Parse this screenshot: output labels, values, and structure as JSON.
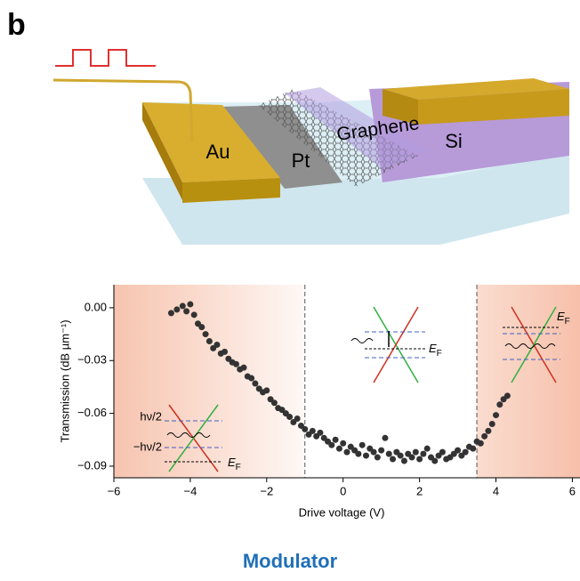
{
  "panel_label": "b",
  "schematic": {
    "labels": [
      "Au",
      "Pt",
      "Graphene",
      "Si"
    ]
  },
  "caption": "Modulator",
  "insets": [
    {
      "labels": [
        "hν/2",
        "−hν/2"
      ],
      "ef": "E",
      "ef_sub": "F"
    },
    {
      "ef": "E",
      "ef_sub": "F"
    },
    {
      "ef": "E",
      "ef_sub": "F"
    }
  ],
  "chart_data": {
    "type": "scatter",
    "xlabel": "Drive voltage (V)",
    "ylabel": "Transmission (dB µm⁻¹)",
    "color": "#333333",
    "x": [
      -4.5,
      -4.35,
      -4.2,
      -4.1,
      -4.0,
      -3.9,
      -3.8,
      -3.7,
      -3.6,
      -3.5,
      -3.4,
      -3.3,
      -3.2,
      -3.1,
      -3.0,
      -2.9,
      -2.8,
      -2.7,
      -2.6,
      -2.5,
      -2.4,
      -2.3,
      -2.2,
      -2.1,
      -2.0,
      -1.9,
      -1.8,
      -1.7,
      -1.6,
      -1.5,
      -1.4,
      -1.3,
      -1.2,
      -1.1,
      -1.0,
      -0.9,
      -0.8,
      -0.7,
      -0.6,
      -0.5,
      -0.4,
      -0.3,
      -0.2,
      -0.1,
      0.0,
      0.1,
      0.2,
      0.3,
      0.4,
      0.5,
      0.6,
      0.7,
      0.8,
      0.9,
      1.0,
      1.1,
      1.2,
      1.3,
      1.4,
      1.5,
      1.6,
      1.7,
      1.8,
      1.9,
      2.0,
      2.1,
      2.2,
      2.3,
      2.4,
      2.5,
      2.6,
      2.7,
      2.8,
      2.9,
      3.0,
      3.1,
      3.2,
      3.3,
      3.4,
      3.5,
      3.6,
      3.7,
      3.8,
      3.9,
      4.0,
      4.1,
      4.2,
      4.3
    ],
    "values": [
      -0.003,
      -0.001,
      0.001,
      -0.002,
      0.002,
      -0.004,
      -0.009,
      -0.011,
      -0.015,
      -0.019,
      -0.023,
      -0.021,
      -0.026,
      -0.025,
      -0.029,
      -0.031,
      -0.032,
      -0.035,
      -0.034,
      -0.039,
      -0.04,
      -0.043,
      -0.046,
      -0.048,
      -0.047,
      -0.052,
      -0.054,
      -0.057,
      -0.058,
      -0.06,
      -0.062,
      -0.065,
      -0.063,
      -0.067,
      -0.069,
      -0.072,
      -0.07,
      -0.073,
      -0.071,
      -0.074,
      -0.076,
      -0.078,
      -0.075,
      -0.08,
      -0.077,
      -0.082,
      -0.079,
      -0.081,
      -0.083,
      -0.078,
      -0.084,
      -0.08,
      -0.082,
      -0.085,
      -0.081,
      -0.074,
      -0.083,
      -0.086,
      -0.082,
      -0.084,
      -0.087,
      -0.083,
      -0.085,
      -0.082,
      -0.086,
      -0.083,
      -0.08,
      -0.085,
      -0.087,
      -0.084,
      -0.082,
      -0.086,
      -0.085,
      -0.083,
      -0.081,
      -0.084,
      -0.082,
      -0.079,
      -0.08,
      -0.076,
      -0.077,
      -0.073,
      -0.07,
      -0.066,
      -0.061,
      -0.055,
      -0.052,
      -0.05
    ],
    "xlim": [
      -6,
      6.2
    ],
    "ylim": [
      -0.0966,
      0.0131
    ],
    "xticks": [
      {
        "value": -6,
        "label": "−6"
      },
      {
        "value": -4,
        "label": "−4"
      },
      {
        "value": -2,
        "label": "−2"
      },
      0,
      2,
      4,
      6
    ],
    "yticks": [
      {
        "value": 0,
        "label": "0.00"
      },
      {
        "value": -0.03,
        "label": "−0.03"
      },
      {
        "value": -0.06,
        "label": "−0.06"
      },
      {
        "value": -0.09,
        "label": "−0.09"
      }
    ],
    "vlines": [
      -1,
      3.5
    ],
    "shade_color": "#f5b9a0"
  }
}
